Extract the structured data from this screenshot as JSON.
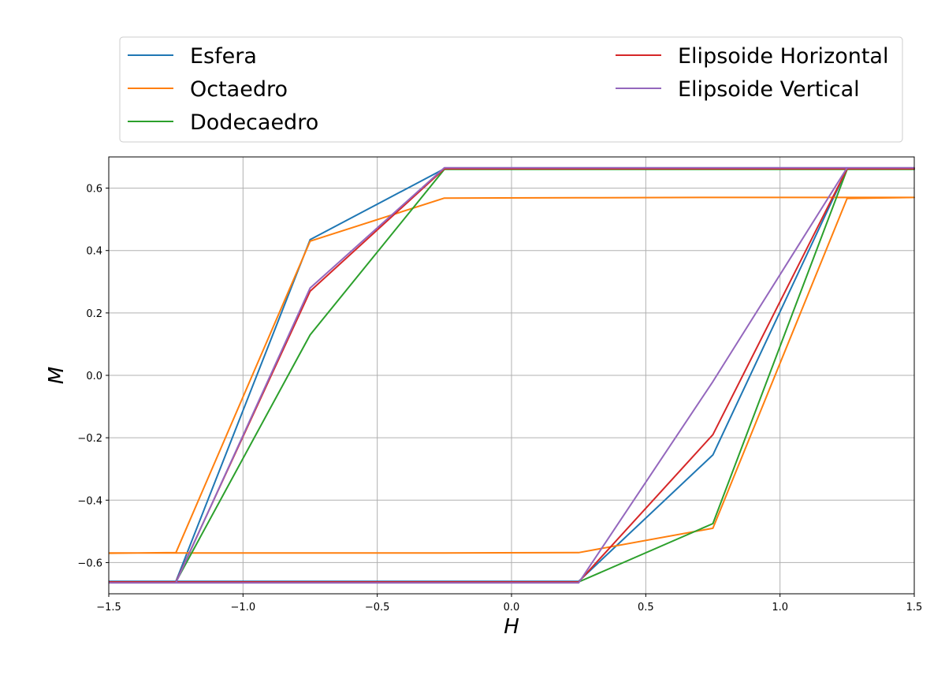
{
  "chart_data": {
    "type": "line",
    "title": "",
    "xlabel": "H",
    "ylabel": "M",
    "xlim": [
      -1.5,
      1.5
    ],
    "ylim": [
      -0.7,
      0.7
    ],
    "xticks": [
      -1.5,
      -1.0,
      -0.5,
      0.0,
      0.5,
      1.0,
      1.5
    ],
    "xtick_labels": [
      "−1.5",
      "−1.0",
      "−0.5",
      "0.0",
      "0.5",
      "1.0",
      "1.5"
    ],
    "yticks": [
      0.6,
      0.4,
      0.2,
      0.0,
      -0.2,
      -0.4,
      -0.6
    ],
    "ytick_labels": [
      "0.6",
      "0.4",
      "0.2",
      "0.0",
      "−0.2",
      "−0.4",
      "−0.6"
    ],
    "grid": true,
    "legend_position": "top, outside plot, two columns",
    "series": [
      {
        "name": "Esfera",
        "color": "#1f77b4",
        "x": [
          -1.5,
          -1.25,
          -0.75,
          -0.25,
          0.25,
          0.75,
          1.25,
          1.5,
          1.25,
          0.75,
          0.25,
          -0.25,
          -0.75,
          -1.25,
          -1.5
        ],
        "y": [
          -0.66,
          -0.66,
          0.435,
          0.662,
          0.662,
          0.662,
          0.662,
          0.662,
          0.662,
          -0.255,
          -0.66,
          -0.66,
          -0.66,
          -0.66,
          -0.66
        ]
      },
      {
        "name": "Octaedro",
        "color": "#ff7f0e",
        "x": [
          -1.5,
          -1.25,
          -0.75,
          -0.25,
          0.25,
          0.75,
          1.25,
          1.5,
          1.25,
          0.75,
          0.25,
          -0.25,
          -0.75,
          -1.25,
          -1.5
        ],
        "y": [
          -0.57,
          -0.568,
          0.43,
          0.568,
          0.569,
          0.57,
          0.57,
          0.57,
          0.567,
          -0.49,
          -0.568,
          -0.569,
          -0.569,
          -0.569,
          -0.569
        ]
      },
      {
        "name": "Dodecaedro",
        "color": "#2ca02c",
        "x": [
          -1.5,
          -1.25,
          -0.75,
          -0.25,
          0.25,
          0.75,
          1.25,
          1.5,
          1.25,
          0.75,
          0.25,
          -0.25,
          -0.75,
          -1.25,
          -1.5
        ],
        "y": [
          -0.662,
          -0.662,
          0.13,
          0.66,
          0.66,
          0.66,
          0.66,
          0.66,
          0.66,
          -0.475,
          -0.662,
          -0.662,
          -0.662,
          -0.662,
          -0.662
        ]
      },
      {
        "name": "Elipsoide Horizontal",
        "color": "#d62728",
        "x": [
          -1.5,
          -1.25,
          -0.75,
          -0.25,
          0.25,
          0.75,
          1.25,
          1.5,
          1.25,
          0.75,
          0.25,
          -0.25,
          -0.75,
          -1.25,
          -1.5
        ],
        "y": [
          -0.662,
          -0.662,
          0.27,
          0.662,
          0.662,
          0.662,
          0.662,
          0.662,
          0.662,
          -0.19,
          -0.662,
          -0.662,
          -0.662,
          -0.662,
          -0.662
        ]
      },
      {
        "name": "Elipsoide Vertical",
        "color": "#9467bd",
        "x": [
          -1.5,
          -1.25,
          -0.75,
          -0.25,
          0.25,
          0.75,
          1.25,
          1.5,
          1.25,
          0.75,
          0.25,
          -0.25,
          -0.75,
          -1.25,
          -1.5
        ],
        "y": [
          -0.665,
          -0.665,
          0.28,
          0.665,
          0.665,
          0.665,
          0.665,
          0.665,
          0.665,
          -0.02,
          -0.665,
          -0.665,
          -0.665,
          -0.665,
          -0.665
        ]
      }
    ]
  }
}
